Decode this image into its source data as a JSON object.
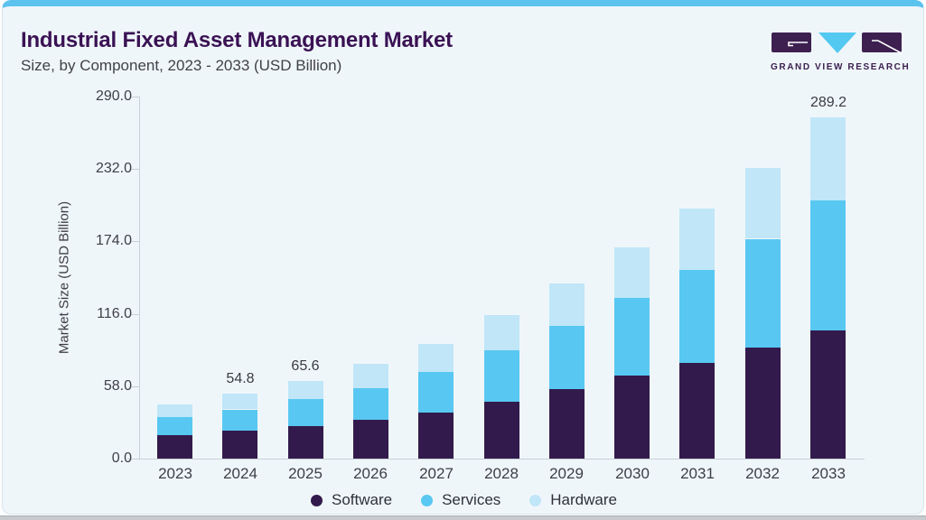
{
  "header": {
    "title": "Industrial Fixed Asset Management Market",
    "subtitle": "Size, by Component, 2023 - 2033 (USD Billion)"
  },
  "logo": {
    "text": "GRAND VIEW RESEARCH",
    "purple": "#3d2050",
    "blue": "#53c8f0"
  },
  "colors": {
    "accent_bar": "#5cc3ee",
    "card_bg": "#eff6fa",
    "title": "#3a1254",
    "axis_line": "#c9d0d6",
    "axis_text": "#3e3e46"
  },
  "chart_data": {
    "type": "bar",
    "stacked": true,
    "title": "Industrial Fixed Asset Management Market Size, by Component, 2023 - 2033 (USD Billion)",
    "xlabel": "",
    "ylabel": "Market Size (USD Billion)",
    "categories": [
      "2023",
      "2024",
      "2025",
      "2026",
      "2027",
      "2028",
      "2029",
      "2030",
      "2031",
      "2032",
      "2033"
    ],
    "series": [
      {
        "name": "Software",
        "color": "#321b4c",
        "values": [
          19.6,
          23.4,
          27.8,
          32.6,
          39.4,
          48.2,
          59.1,
          70.3,
          81.3,
          94.0,
          108.6
        ]
      },
      {
        "name": "Services",
        "color": "#58c8f2",
        "values": [
          15.8,
          18.3,
          22.7,
          27.3,
          34.0,
          43.8,
          53.5,
          65.8,
          78.9,
          92.2,
          110.3
        ]
      },
      {
        "name": "Hardware",
        "color": "#c0e6f8",
        "values": [
          10.7,
          13.1,
          15.1,
          20.1,
          23.9,
          29.3,
          35.7,
          42.8,
          51.6,
          60.2,
          70.3
        ]
      }
    ],
    "totals": [
      46.1,
      54.8,
      65.6,
      80.0,
      97.3,
      121.3,
      148.3,
      178.9,
      211.8,
      246.4,
      289.2
    ],
    "data_labels": [
      "",
      "54.8",
      "65.6",
      "",
      "",
      "",
      "",
      "",
      "",
      "",
      "289.2"
    ],
    "yticks": [
      290.0,
      232.0,
      174.0,
      116.0,
      58.0,
      0.0
    ],
    "ytick_labels": [
      "290.0",
      "232.0",
      "174.0",
      "116.0",
      "58.0",
      "0.0"
    ],
    "ylim": [
      0,
      290
    ],
    "grid": false,
    "legend_position": "bottom"
  }
}
